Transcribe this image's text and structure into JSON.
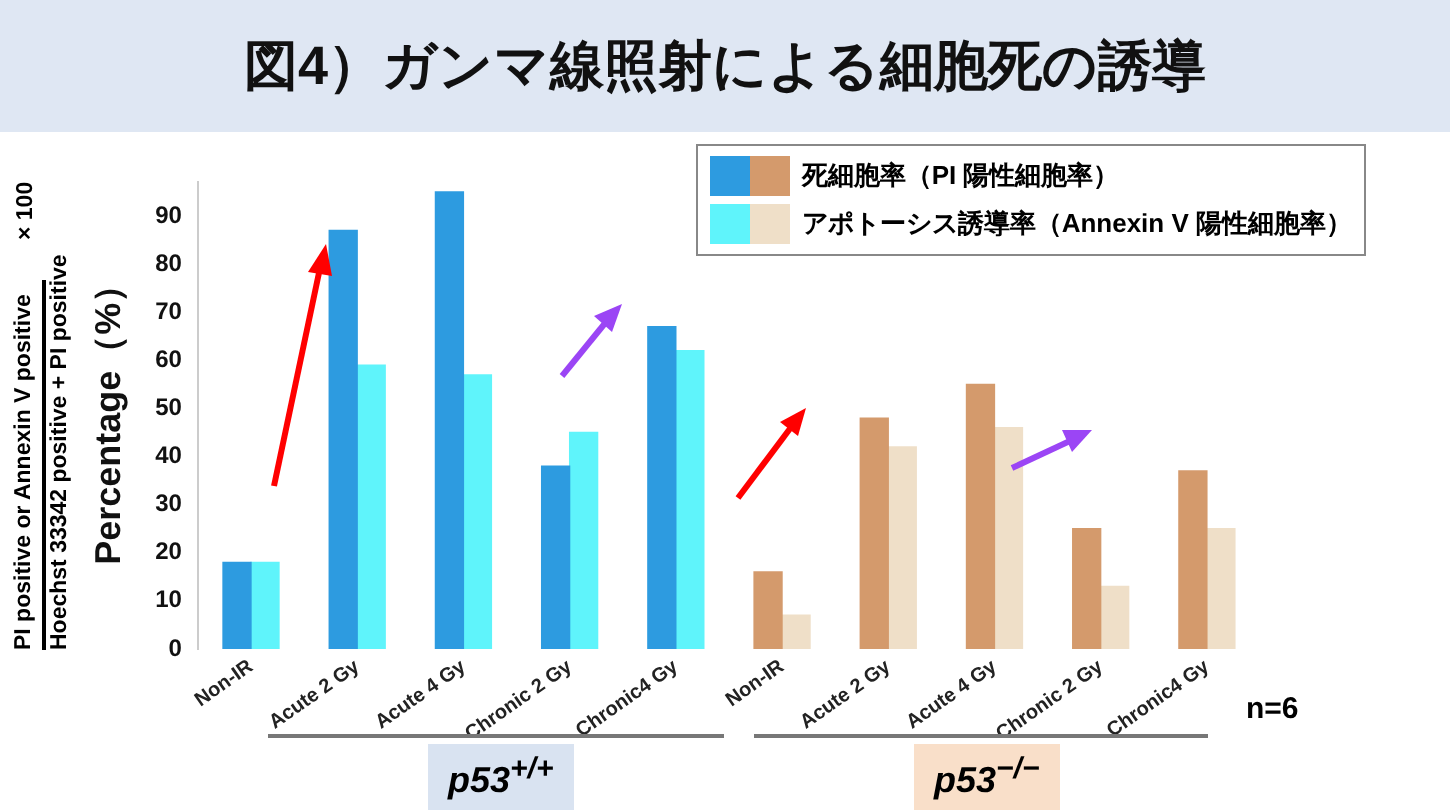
{
  "chart_data": {
    "type": "bar",
    "title": "図4）ガンマ線照射による細胞死の誘導",
    "ylabel": "Percentage（%）",
    "categories": [
      "Non-IR",
      "Acute 2 Gy",
      "Acute 4 Gy",
      "Chronic 2 Gy",
      "Chronic4 Gy",
      "Non-IR",
      "Acute 2 Gy",
      "Acute 4 Gy",
      "Chronic 2 Gy",
      "Chronic4 Gy"
    ],
    "series": [
      {
        "name": "死細胞率（PI 陽性細胞率）",
        "colors": [
          "#2d9be0",
          "#2d9be0",
          "#2d9be0",
          "#2d9be0",
          "#2d9be0",
          "#d49a6c",
          "#d49a6c",
          "#d49a6c",
          "#d49a6c",
          "#d49a6c"
        ],
        "values": [
          18,
          87,
          95,
          38,
          67,
          16,
          48,
          55,
          25,
          37
        ]
      },
      {
        "name": "アポトーシス誘導率（Annexin V 陽性細胞率）",
        "colors": [
          "#5ff4fb",
          "#5ff4fb",
          "#5ff4fb",
          "#5ff4fb",
          "#5ff4fb",
          "#efdfc8",
          "#efdfc8",
          "#efdfc8",
          "#efdfc8",
          "#efdfc8"
        ],
        "values": [
          18,
          59,
          57,
          45,
          62,
          7,
          42,
          46,
          13,
          25
        ]
      }
    ],
    "ylim": [
      0,
      97
    ],
    "yticks": [
      0,
      10,
      20,
      30,
      40,
      50,
      60,
      70,
      80,
      90
    ],
    "grid": false,
    "legend": "top right",
    "annotations": [
      "PI positive or Annexin V positive",
      "Hoechst 33342 positive + PI positive",
      "× 100",
      "p53$^{+/+}$",
      "p53$^{−/−}$",
      "n=6"
    ]
  }
}
